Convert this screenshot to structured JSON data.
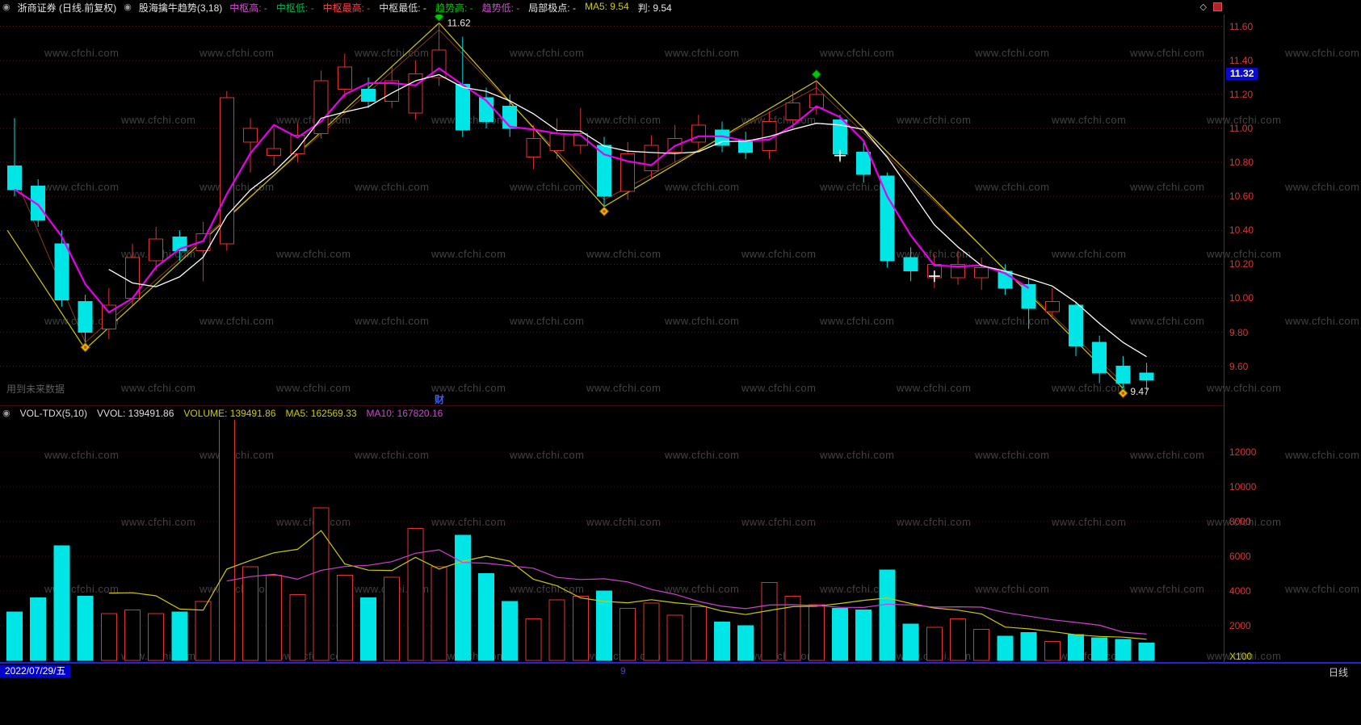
{
  "window": {
    "title": "浙商证券 (日线.前复权)",
    "indicator": "股海擒牛趋势(3,18)",
    "bottom": {
      "date": "2022/07/29/五",
      "mid_label": "9",
      "period": "日线"
    }
  },
  "header_tags": [
    {
      "label": "中枢高:",
      "value": "-",
      "color": "#d44ad4"
    },
    {
      "label": "中枢低:",
      "value": "-",
      "color": "#00b450"
    },
    {
      "label": "中枢最高:",
      "value": "-",
      "color": "#ff4343"
    },
    {
      "label": "中枢最低:",
      "value": "-",
      "color": "#d8d8d8"
    },
    {
      "label": "趋势高:",
      "value": "-",
      "color": "#00c800"
    },
    {
      "label": "趋势低:",
      "value": "-",
      "color": "#c850c8"
    },
    {
      "label": "局部极点:",
      "value": "-",
      "color": "#e8e8e8"
    },
    {
      "label": "MA5:",
      "value": "9.54",
      "color": "#cbcb00"
    },
    {
      "label": "判:",
      "value": "9.54",
      "color": "#e8e8e8"
    }
  ],
  "main_panel": {
    "future_data_note": "用到未来数据",
    "event_flag": "财",
    "price_tag": {
      "value": "11.32",
      "bg": "#0a0acf"
    }
  },
  "volume_header": {
    "name": "VOL-TDX(5,10)",
    "vvol": "VVOL: 139491.86",
    "volume": "VOLUME: 139491.86",
    "ma5": "MA5: 162569.33",
    "ma10": "MA10: 167820.16"
  },
  "watermark": "www.cfchi.com",
  "chart_data": {
    "type": "candlestick+volume",
    "title": "浙商证券 日线 前复权 股海擒牛趋势(3,18)",
    "legend": [
      "MA5(yellow zigzag/均线)",
      "判(white)",
      "中枢(magenta)"
    ],
    "price_axis": {
      "min": 9.37,
      "max": 11.67,
      "ticks": [
        11.6,
        11.4,
        11.2,
        11.0,
        10.8,
        10.6,
        10.4,
        10.2,
        10.0,
        9.8,
        9.6
      ]
    },
    "volume_axis": {
      "min": 0,
      "max": 13860,
      "ticks": [
        2000,
        4000,
        6000,
        8000,
        10000,
        12000
      ],
      "unit": "X100"
    },
    "up_color": "#e03232",
    "down_color": "#00e5e5",
    "ma_fast_color": "#e800e8",
    "ma_slow_color": "#ffffff",
    "zigzag_color": "#cbcb00",
    "zigzag2_color": "#8a3a1c",
    "vol_ma5_color": "#cbcb00",
    "vol_ma10_color": "#d040d0",
    "grid_color": "#5f1a1a",
    "candles": [
      [
        10.78,
        11.06,
        10.6,
        10.64,
        2800
      ],
      [
        10.66,
        10.7,
        10.42,
        10.46,
        3600
      ],
      [
        10.32,
        10.4,
        9.95,
        9.99,
        6600
      ],
      [
        9.98,
        10.02,
        9.7,
        9.8,
        3700
      ],
      [
        9.82,
        10.06,
        9.76,
        9.96,
        2700
      ],
      [
        10.0,
        10.32,
        9.96,
        10.24,
        2900
      ],
      [
        10.22,
        10.42,
        10.16,
        10.35,
        2700
      ],
      [
        10.36,
        10.4,
        10.22,
        10.28,
        2800
      ],
      [
        10.28,
        10.45,
        10.1,
        10.38,
        3400
      ],
      [
        10.32,
        11.22,
        10.28,
        11.18,
        14500
      ],
      [
        10.92,
        11.06,
        10.74,
        11.0,
        5400
      ],
      [
        10.84,
        11.0,
        10.78,
        10.88,
        4900
      ],
      [
        10.85,
        11.03,
        10.8,
        10.96,
        3800
      ],
      [
        10.97,
        11.34,
        10.94,
        11.28,
        8800
      ],
      [
        11.23,
        11.44,
        11.18,
        11.36,
        4900
      ],
      [
        11.23,
        11.3,
        11.12,
        11.16,
        3600
      ],
      [
        11.16,
        11.36,
        11.12,
        11.28,
        4800
      ],
      [
        11.09,
        11.4,
        11.05,
        11.32,
        7600
      ],
      [
        11.3,
        11.62,
        11.25,
        11.46,
        5400
      ],
      [
        11.26,
        11.54,
        10.95,
        10.99,
        7200
      ],
      [
        11.18,
        11.24,
        11.0,
        11.04,
        5000
      ],
      [
        11.13,
        11.2,
        10.95,
        11.0,
        3400
      ],
      [
        10.83,
        11.02,
        10.76,
        10.94,
        2400
      ],
      [
        10.87,
        11.06,
        10.82,
        10.97,
        3500
      ],
      [
        10.9,
        11.12,
        10.85,
        10.97,
        3700
      ],
      [
        10.9,
        10.95,
        10.54,
        10.6,
        4000
      ],
      [
        10.63,
        10.92,
        10.58,
        10.85,
        3000
      ],
      [
        10.75,
        10.96,
        10.7,
        10.9,
        3300
      ],
      [
        10.86,
        11.02,
        10.8,
        10.94,
        2600
      ],
      [
        10.92,
        11.08,
        10.88,
        11.02,
        3100
      ],
      [
        10.99,
        11.04,
        10.86,
        10.9,
        2200
      ],
      [
        10.93,
        10.98,
        10.82,
        10.86,
        2000
      ],
      [
        10.87,
        11.1,
        10.82,
        11.04,
        4500
      ],
      [
        11.05,
        11.22,
        11.0,
        11.15,
        3700
      ],
      [
        11.12,
        11.28,
        11.08,
        11.2,
        3200
      ],
      [
        11.05,
        11.08,
        10.8,
        10.85,
        3000
      ],
      [
        10.86,
        10.92,
        10.68,
        10.73,
        2900
      ],
      [
        10.72,
        10.74,
        10.18,
        10.22,
        5200
      ],
      [
        10.24,
        10.3,
        10.1,
        10.16,
        2100
      ],
      [
        10.12,
        10.26,
        10.06,
        10.2,
        1900
      ],
      [
        10.12,
        10.28,
        10.08,
        10.2,
        2400
      ],
      [
        10.12,
        10.24,
        10.05,
        10.18,
        1800
      ],
      [
        10.16,
        10.2,
        10.02,
        10.06,
        1400
      ],
      [
        10.08,
        10.12,
        9.82,
        9.94,
        1600
      ],
      [
        9.92,
        10.06,
        9.88,
        9.98,
        1100
      ],
      [
        9.96,
        9.98,
        9.66,
        9.72,
        1500
      ],
      [
        9.74,
        9.78,
        9.5,
        9.56,
        1300
      ],
      [
        9.6,
        9.66,
        9.47,
        9.5,
        1200
      ],
      [
        9.56,
        9.62,
        9.46,
        9.52,
        1000
      ]
    ],
    "zigzag": [
      {
        "i": -0.3,
        "p": 10.4
      },
      {
        "i": 3,
        "p": 9.7
      },
      {
        "i": 18,
        "p": 11.62
      },
      {
        "i": 25,
        "p": 10.54
      },
      {
        "i": 34,
        "p": 11.28
      },
      {
        "i": 47,
        "p": 9.47
      }
    ],
    "zigzag2": [
      {
        "i": 0,
        "p": 10.72
      },
      {
        "i": 3,
        "p": 9.74
      },
      {
        "i": 18,
        "p": 11.58
      },
      {
        "i": 25,
        "p": 10.58
      },
      {
        "i": 34,
        "p": 11.24
      },
      {
        "i": 47,
        "p": 9.5
      }
    ],
    "markers": [
      {
        "i": 3,
        "p": 9.74,
        "kind": "low"
      },
      {
        "i": 18,
        "p": 11.62,
        "kind": "high",
        "label": "11.62"
      },
      {
        "i": 25,
        "p": 10.54,
        "kind": "low"
      },
      {
        "i": 34,
        "p": 11.28,
        "kind": "high"
      },
      {
        "i": 47,
        "p": 9.47,
        "kind": "low",
        "label": "9.47"
      },
      {
        "i": 35,
        "p": 10.84,
        "kind": "cross"
      },
      {
        "i": 39,
        "p": 10.13,
        "kind": "cross"
      }
    ]
  }
}
